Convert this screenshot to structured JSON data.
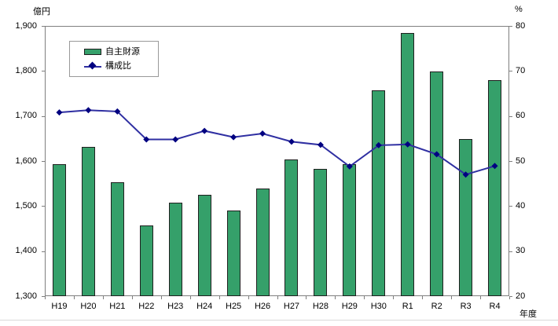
{
  "units": {
    "left": "億円",
    "right": "%",
    "x": "年度"
  },
  "legend": {
    "bar_label": "自主財源",
    "line_label": "構成比"
  },
  "colors": {
    "bar_fill": "#35a06a",
    "bar_border": "#1f1f1f",
    "line": "#2f2fa2",
    "marker": "#000080",
    "axis": "#7f7f7f",
    "text": "#000000"
  },
  "chart_data": {
    "type": "bar+line combo",
    "categories": [
      "H19",
      "H20",
      "H21",
      "H22",
      "H23",
      "H24",
      "H25",
      "H26",
      "H27",
      "H28",
      "H29",
      "H30",
      "R1",
      "R2",
      "R3",
      "R4"
    ],
    "series": [
      {
        "name": "自主財源",
        "type": "bar",
        "axis": "left",
        "values": [
          1593,
          1632,
          1553,
          1457,
          1507,
          1525,
          1490,
          1539,
          1604,
          1582,
          1593,
          1757,
          1884,
          1799,
          1648,
          1780
        ]
      },
      {
        "name": "構成比",
        "type": "line",
        "axis": "right",
        "values": [
          60.8,
          61.3,
          61.0,
          54.8,
          54.8,
          56.7,
          55.3,
          56.1,
          54.3,
          53.6,
          48.8,
          53.5,
          53.7,
          51.5,
          47.0,
          48.9
        ]
      }
    ],
    "left_axis": {
      "label": "億円",
      "min": 1300,
      "max": 1900,
      "step": 100,
      "tick_labels": [
        "1,300",
        "1,400",
        "1,500",
        "1,600",
        "1,700",
        "1,800",
        "1,900"
      ]
    },
    "right_axis": {
      "label": "%",
      "min": 20,
      "max": 80,
      "step": 10,
      "tick_labels": [
        "20",
        "30",
        "40",
        "50",
        "60",
        "70",
        "80"
      ]
    },
    "xlabel": "年度",
    "grid": false,
    "legend_position": "top-left-inside"
  }
}
